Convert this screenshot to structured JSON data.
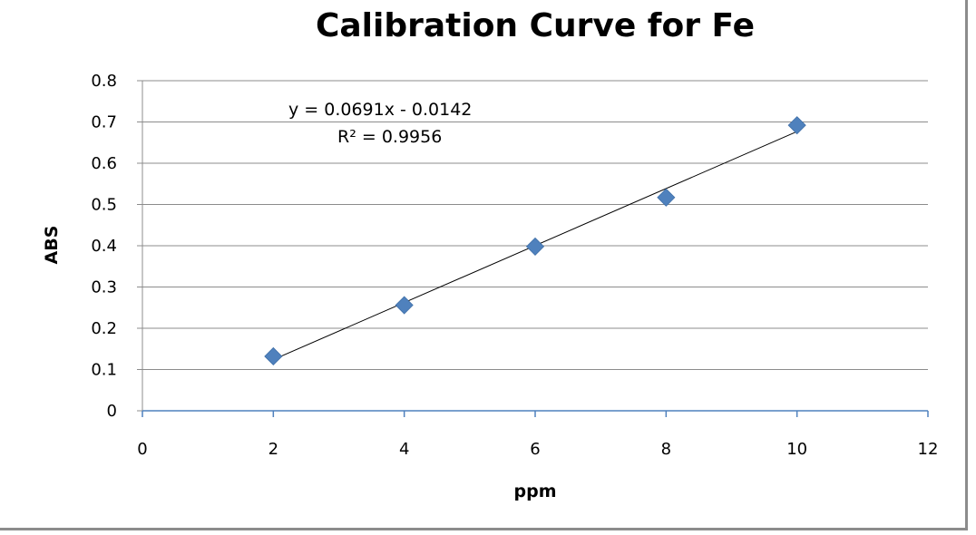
{
  "chart_data": {
    "type": "scatter",
    "title": "Calibration Curve for Fe",
    "xlabel": "ppm",
    "ylabel": "ABS",
    "xlim": [
      0,
      12
    ],
    "ylim": [
      0,
      0.8
    ],
    "x_ticks": [
      "0",
      "2",
      "4",
      "6",
      "8",
      "10",
      "12"
    ],
    "y_ticks": [
      "0",
      "0.1",
      "0.2",
      "0.3",
      "0.4",
      "0.5",
      "0.6",
      "0.7",
      "0.8"
    ],
    "grid": "horizontal",
    "series": [
      {
        "x": [
          2,
          4,
          6,
          8,
          10
        ],
        "y": [
          0.132,
          0.256,
          0.398,
          0.517,
          0.692
        ],
        "marker": "diamond",
        "color": "#4f81bd"
      }
    ],
    "trendline": {
      "type": "linear",
      "slope": 0.0691,
      "intercept": -0.0142,
      "x_range": [
        2,
        10
      ],
      "equation": "y = 0.0691x - 0.0142",
      "r2": "R² = 0.9956",
      "color": "#000000"
    }
  }
}
